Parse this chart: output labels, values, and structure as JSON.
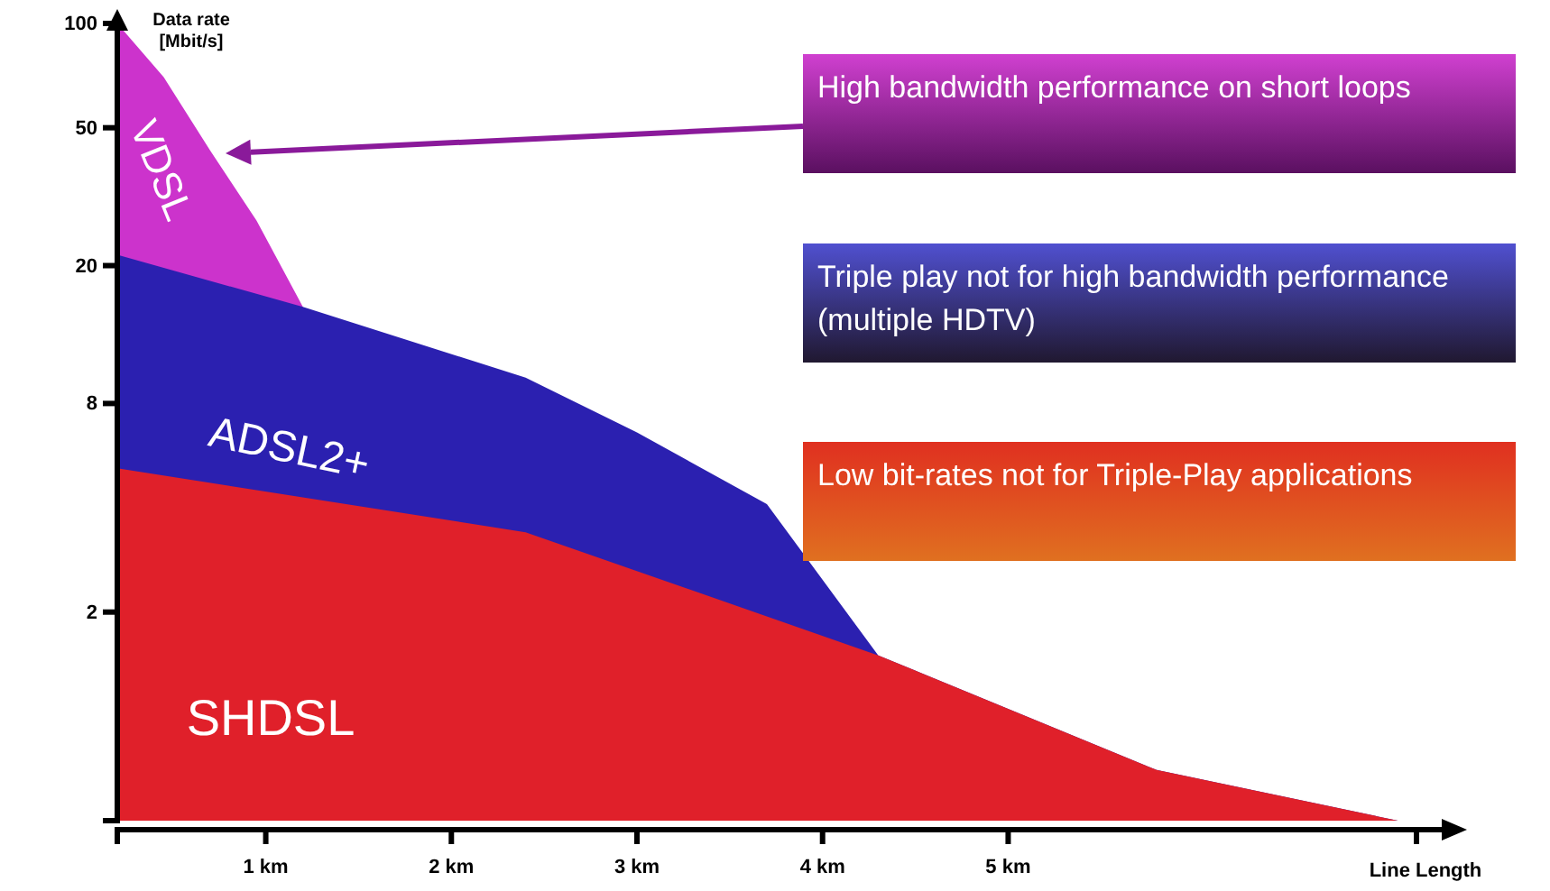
{
  "chart_data": {
    "type": "area",
    "ylabel": "Data rate [Mbit/s]",
    "xlabel": "Line Length",
    "xlim": [
      0.2,
      7.2
    ],
    "xticks": [
      {
        "value": 1,
        "label": "1 km"
      },
      {
        "value": 2,
        "label": "2 km"
      },
      {
        "value": 3,
        "label": "3 km"
      },
      {
        "value": 4,
        "label": "4 km"
      },
      {
        "value": 5,
        "label": "5 km"
      }
    ],
    "ylim": [
      0.5,
      100
    ],
    "yticks": [
      2,
      8,
      20,
      50,
      100
    ],
    "log": "y",
    "series": [
      {
        "name": "VDSL",
        "color": "#cc33cc",
        "x": [
          0.2,
          0.45,
          0.7,
          0.95,
          1.2
        ],
        "values": [
          100,
          70,
          43,
          27,
          15.2
        ]
      },
      {
        "name": "ADSL2+",
        "color": "#2b20b0",
        "x": [
          0.2,
          1.2,
          2.4,
          3.0,
          3.7,
          4.3,
          5.8,
          7.1
        ],
        "values": [
          21.5,
          15.2,
          9.5,
          6.6,
          4.1,
          1.5,
          0.7,
          0.5
        ]
      },
      {
        "name": "SHDSL",
        "color": "#e0202a",
        "x": [
          0.2,
          2.4,
          4.3,
          5.8,
          7.1
        ],
        "values": [
          5.2,
          3.4,
          1.5,
          0.7,
          0.5
        ]
      }
    ],
    "annotations": [
      "High bandwidth performance on  short loops",
      "Triple play not for high bandwidth performance (multiple HDTV)",
      "Low bit-rates not for Triple-Play applications"
    ],
    "grid": false
  }
}
